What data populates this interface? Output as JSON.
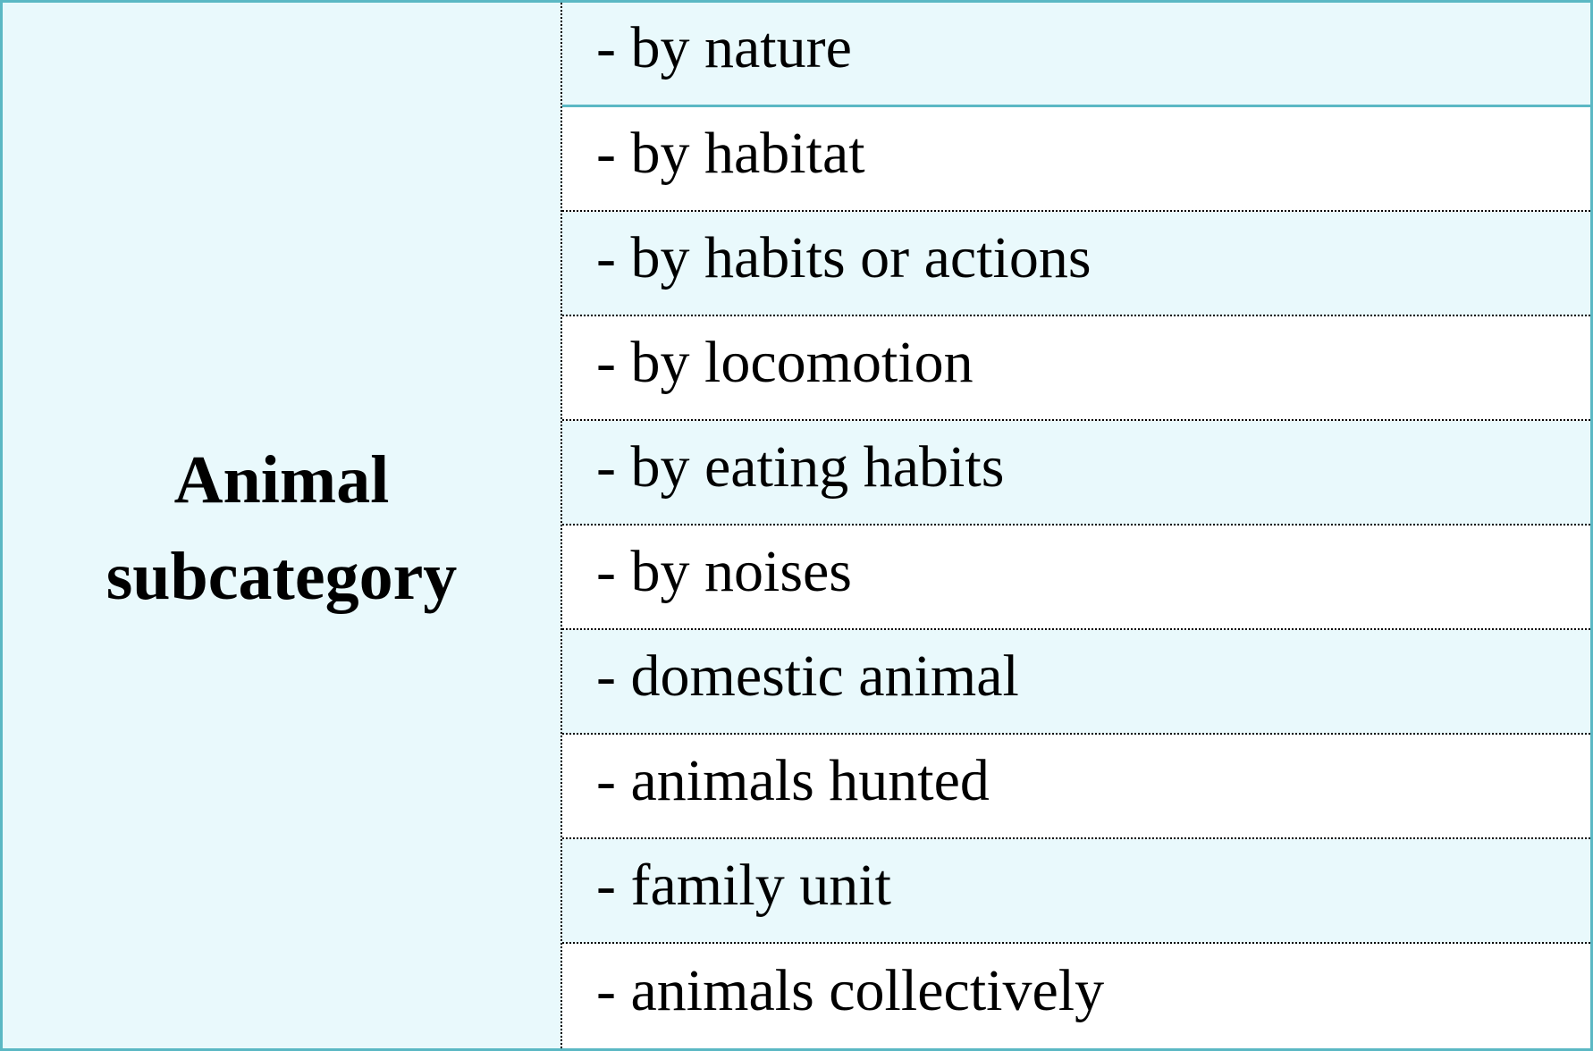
{
  "table": {
    "category": {
      "line1": "Animal",
      "line2": "subcategory"
    },
    "rows": [
      {
        "label": "- by nature"
      },
      {
        "label": "- by habitat"
      },
      {
        "label": "- by habits or actions"
      },
      {
        "label": "- by locomotion"
      },
      {
        "label": "- by eating habits"
      },
      {
        "label": "- by noises"
      },
      {
        "label": "- domestic animal"
      },
      {
        "label": "- animals hunted"
      },
      {
        "label": "- family unit"
      },
      {
        "label": "- animals collectively"
      }
    ]
  },
  "colors": {
    "border": "#5bb8c4",
    "shaded_fill": "#e9f9fc",
    "plain_fill": "#ffffff",
    "text": "#000000"
  }
}
